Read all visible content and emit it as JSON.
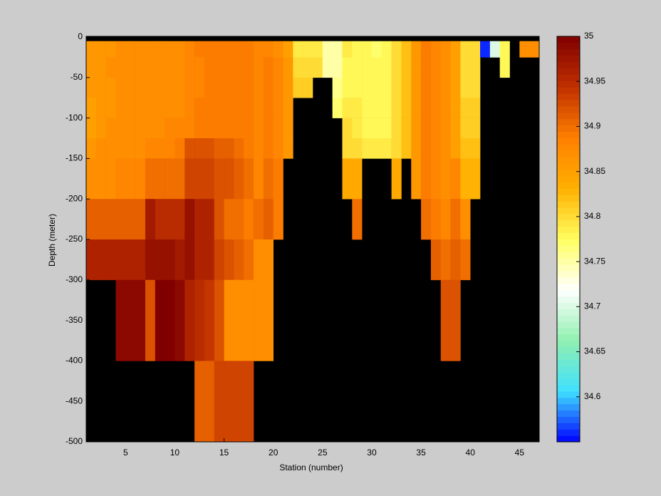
{
  "chart_data": {
    "type": "heatmap",
    "xlabel": "Station (number)",
    "ylabel": "Depth (meter)",
    "xlim": [
      1,
      47
    ],
    "xticks": [
      5,
      10,
      15,
      20,
      25,
      30,
      35,
      40,
      45
    ],
    "ylim": [
      -500,
      0
    ],
    "yticks": [
      0,
      -50,
      -100,
      -150,
      -200,
      -250,
      -300,
      -350,
      -400,
      -450,
      -500
    ],
    "depth_edges": [
      -5,
      -25,
      -50,
      -75,
      -100,
      -125,
      -150,
      -200,
      -250,
      -300,
      -400,
      -500
    ],
    "clim": [
      34.55,
      35.0
    ],
    "cticks": [
      34.6,
      34.65,
      34.7,
      34.75,
      34.8,
      34.85,
      34.9,
      34.95,
      35
    ],
    "colormap": [
      "#0000ff",
      "#40e0ff",
      "#90f0b0",
      "#ffffff",
      "#ffff60",
      "#ffb000",
      "#ff8000",
      "#c03000",
      "#800000"
    ],
    "missing_color": "#000000",
    "values": [
      [
        34.86,
        34.86,
        34.86,
        34.85,
        34.85,
        34.86,
        34.87,
        34.91,
        34.96,
        null,
        null
      ],
      [
        34.86,
        34.86,
        34.86,
        34.86,
        34.86,
        34.87,
        34.87,
        34.91,
        34.96,
        null,
        null
      ],
      [
        34.86,
        34.87,
        34.86,
        34.86,
        34.87,
        34.87,
        34.87,
        34.91,
        34.96,
        null,
        null
      ],
      [
        34.87,
        34.87,
        34.87,
        34.87,
        34.87,
        34.87,
        34.88,
        34.91,
        34.96,
        34.99,
        null
      ],
      [
        34.87,
        34.87,
        34.87,
        34.87,
        34.87,
        34.87,
        34.88,
        34.91,
        34.96,
        34.99,
        null
      ],
      [
        34.87,
        34.87,
        34.87,
        34.87,
        34.87,
        34.87,
        34.88,
        34.91,
        34.96,
        34.99,
        null
      ],
      [
        34.87,
        34.87,
        34.87,
        34.87,
        34.87,
        34.88,
        34.9,
        34.97,
        34.98,
        34.92,
        null
      ],
      [
        34.87,
        34.87,
        34.87,
        34.87,
        34.87,
        34.88,
        34.9,
        34.95,
        34.98,
        35.0,
        null
      ],
      [
        34.87,
        34.87,
        34.87,
        34.87,
        34.88,
        34.88,
        34.9,
        34.95,
        34.98,
        35.0,
        null
      ],
      [
        34.87,
        34.87,
        34.87,
        34.87,
        34.88,
        34.89,
        34.9,
        34.95,
        34.97,
        34.99,
        null
      ],
      [
        34.88,
        34.88,
        34.88,
        34.88,
        34.88,
        34.92,
        34.93,
        34.98,
        34.98,
        34.96,
        null
      ],
      [
        34.89,
        34.88,
        34.88,
        34.89,
        34.89,
        34.92,
        34.93,
        34.96,
        34.96,
        34.95,
        34.91
      ],
      [
        34.89,
        34.89,
        34.89,
        34.89,
        34.89,
        34.92,
        34.93,
        34.96,
        34.96,
        34.94,
        34.91
      ],
      [
        34.89,
        34.89,
        34.89,
        34.89,
        34.89,
        34.91,
        34.92,
        34.92,
        34.93,
        34.92,
        34.93
      ],
      [
        34.89,
        34.89,
        34.89,
        34.89,
        34.89,
        34.91,
        34.92,
        34.9,
        34.92,
        34.87,
        34.93
      ],
      [
        34.89,
        34.89,
        34.89,
        34.89,
        34.89,
        34.9,
        34.91,
        34.9,
        34.91,
        34.87,
        34.93
      ],
      [
        34.89,
        34.89,
        34.89,
        34.89,
        34.89,
        34.89,
        34.9,
        34.89,
        34.9,
        34.87,
        34.93
      ],
      [
        34.88,
        34.88,
        34.88,
        34.88,
        34.88,
        34.88,
        34.88,
        34.9,
        34.87,
        34.87,
        null
      ],
      [
        34.88,
        34.89,
        34.89,
        34.89,
        34.89,
        34.89,
        34.9,
        34.91,
        34.87,
        34.87,
        null
      ],
      [
        34.87,
        34.88,
        34.88,
        34.88,
        34.88,
        34.88,
        34.89,
        34.89,
        null,
        null,
        null
      ],
      [
        34.85,
        34.86,
        34.86,
        34.86,
        34.86,
        34.86,
        null,
        null,
        null,
        null,
        null
      ],
      [
        34.79,
        34.8,
        34.81,
        null,
        null,
        null,
        null,
        null,
        null,
        null,
        null
      ],
      [
        34.79,
        34.8,
        34.81,
        null,
        null,
        null,
        null,
        null,
        null,
        null,
        null
      ],
      [
        34.79,
        34.8,
        null,
        null,
        null,
        null,
        null,
        null,
        null,
        null,
        null
      ],
      [
        34.75,
        34.75,
        null,
        null,
        null,
        null,
        null,
        null,
        null,
        null,
        null
      ],
      [
        34.75,
        34.75,
        34.76,
        34.77,
        null,
        null,
        null,
        null,
        null,
        null,
        null
      ],
      [
        34.79,
        34.78,
        34.78,
        34.79,
        34.8,
        34.8,
        34.84,
        null,
        null,
        null,
        null
      ],
      [
        34.78,
        34.78,
        34.78,
        34.79,
        34.79,
        34.8,
        34.84,
        34.9,
        null,
        null,
        null
      ],
      [
        34.78,
        34.78,
        34.78,
        34.78,
        34.78,
        34.79,
        null,
        null,
        null,
        null,
        null
      ],
      [
        34.77,
        34.78,
        34.78,
        34.78,
        34.78,
        34.79,
        null,
        null,
        null,
        null,
        null
      ],
      [
        34.78,
        34.78,
        34.78,
        34.78,
        34.78,
        34.79,
        null,
        null,
        null,
        null,
        null
      ],
      [
        34.8,
        34.8,
        34.8,
        34.8,
        34.8,
        34.8,
        34.84,
        null,
        null,
        null,
        null
      ],
      [
        34.82,
        34.82,
        34.82,
        34.82,
        34.82,
        34.82,
        null,
        null,
        null,
        null,
        null
      ],
      [
        34.86,
        34.86,
        34.86,
        34.86,
        34.86,
        34.86,
        34.86,
        null,
        null,
        null,
        null
      ],
      [
        34.89,
        34.89,
        34.89,
        34.89,
        34.89,
        34.89,
        34.89,
        34.9,
        null,
        null,
        null
      ],
      [
        34.88,
        34.88,
        34.88,
        34.88,
        34.88,
        34.88,
        34.88,
        34.89,
        34.91,
        null,
        null
      ],
      [
        34.87,
        34.87,
        34.87,
        34.87,
        34.87,
        34.87,
        34.87,
        34.88,
        34.9,
        34.92,
        null
      ],
      [
        34.85,
        34.85,
        34.85,
        34.85,
        34.85,
        34.85,
        34.88,
        34.9,
        34.91,
        34.92,
        null
      ],
      [
        34.8,
        34.8,
        34.8,
        34.81,
        34.81,
        34.82,
        34.83,
        34.87,
        34.9,
        null,
        null
      ],
      [
        34.8,
        34.8,
        34.8,
        34.81,
        34.81,
        34.82,
        34.83,
        null,
        null,
        null,
        null
      ],
      [
        34.56,
        null,
        null,
        null,
        null,
        null,
        null,
        null,
        null,
        null,
        null
      ],
      [
        34.7,
        null,
        null,
        null,
        null,
        null,
        null,
        null,
        null,
        null,
        null
      ],
      [
        34.78,
        34.78,
        null,
        null,
        null,
        null,
        null,
        null,
        null,
        null,
        null
      ],
      [
        null,
        null,
        null,
        null,
        null,
        null,
        null,
        null,
        null,
        null,
        null
      ],
      [
        34.87,
        null,
        null,
        null,
        null,
        null,
        null,
        null,
        null,
        null,
        null
      ],
      [
        34.87,
        null,
        null,
        null,
        null,
        null,
        null,
        null,
        null,
        null,
        null
      ]
    ]
  }
}
